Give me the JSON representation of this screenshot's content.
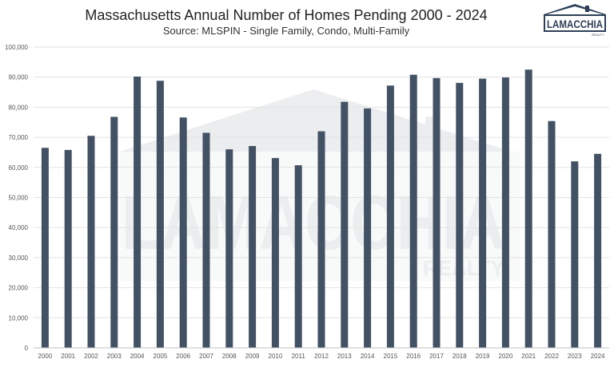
{
  "title": "Massachusetts Annual Number of Homes Pending 2000 - 2024",
  "subtitle": "Source: MLSPIN - Single Family, Condo, Multi-Family",
  "logo": {
    "text": "LAMACCHIA",
    "subtext": "REALTY",
    "color": "#2e3f57"
  },
  "watermark": {
    "text": "LAMACCHIA",
    "subtext": "REALTY"
  },
  "colors": {
    "bar": "#435164",
    "grid": "#e3e3e3",
    "axis": "#bfbfbf"
  },
  "chart_data": {
    "type": "bar",
    "title": "Massachusetts Annual Number of Homes Pending 2000 - 2024",
    "subtitle": "Source: MLSPIN - Single Family, Condo, Multi-Family",
    "xlabel": "",
    "ylabel": "",
    "ylim": [
      0,
      100000
    ],
    "yticks": [
      0,
      10000,
      20000,
      30000,
      40000,
      50000,
      60000,
      70000,
      80000,
      90000,
      100000
    ],
    "ytick_labels": [
      "0",
      "10,000",
      "20,000",
      "30,000",
      "40,000",
      "50,000",
      "60,000",
      "70,000",
      "80,000",
      "90,000",
      "100,000"
    ],
    "grid": true,
    "categories": [
      "2000",
      "2001",
      "2002",
      "2003",
      "2004",
      "2005",
      "2006",
      "2007",
      "2008",
      "2009",
      "2010",
      "2011",
      "2012",
      "2013",
      "2014",
      "2015",
      "2016",
      "2017",
      "2018",
      "2019",
      "2020",
      "2021",
      "2022",
      "2023",
      "2024"
    ],
    "values": [
      66500,
      65800,
      70500,
      76800,
      90200,
      88800,
      76600,
      71500,
      66000,
      67100,
      63100,
      60700,
      72000,
      81800,
      79600,
      87200,
      90800,
      89700,
      88100,
      89500,
      89900,
      92500,
      75400,
      62000,
      64500
    ]
  }
}
